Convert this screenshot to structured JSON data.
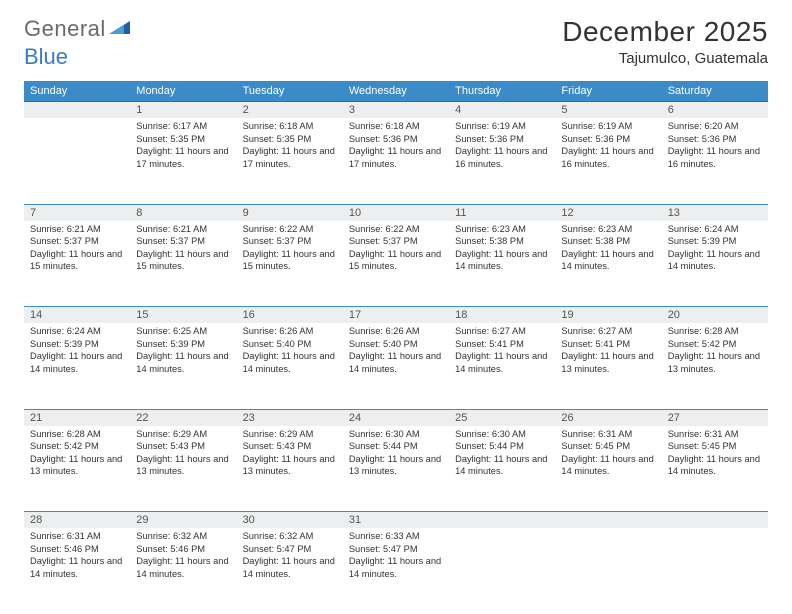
{
  "logo": {
    "general": "General",
    "blue": "Blue"
  },
  "title": "December 2025",
  "location": "Tajumulco, Guatemala",
  "header_bg": "#3b8bc9",
  "days_header": [
    "Sunday",
    "Monday",
    "Tuesday",
    "Wednesday",
    "Thursday",
    "Friday",
    "Saturday"
  ],
  "weeks": [
    {
      "nums": [
        "",
        "1",
        "2",
        "3",
        "4",
        "5",
        "6"
      ],
      "cells": [
        {
          "sunrise": "",
          "sunset": "",
          "daylight": ""
        },
        {
          "sunrise": "Sunrise: 6:17 AM",
          "sunset": "Sunset: 5:35 PM",
          "daylight": "Daylight: 11 hours and 17 minutes."
        },
        {
          "sunrise": "Sunrise: 6:18 AM",
          "sunset": "Sunset: 5:35 PM",
          "daylight": "Daylight: 11 hours and 17 minutes."
        },
        {
          "sunrise": "Sunrise: 6:18 AM",
          "sunset": "Sunset: 5:36 PM",
          "daylight": "Daylight: 11 hours and 17 minutes."
        },
        {
          "sunrise": "Sunrise: 6:19 AM",
          "sunset": "Sunset: 5:36 PM",
          "daylight": "Daylight: 11 hours and 16 minutes."
        },
        {
          "sunrise": "Sunrise: 6:19 AM",
          "sunset": "Sunset: 5:36 PM",
          "daylight": "Daylight: 11 hours and 16 minutes."
        },
        {
          "sunrise": "Sunrise: 6:20 AM",
          "sunset": "Sunset: 5:36 PM",
          "daylight": "Daylight: 11 hours and 16 minutes."
        }
      ]
    },
    {
      "nums": [
        "7",
        "8",
        "9",
        "10",
        "11",
        "12",
        "13"
      ],
      "cells": [
        {
          "sunrise": "Sunrise: 6:21 AM",
          "sunset": "Sunset: 5:37 PM",
          "daylight": "Daylight: 11 hours and 15 minutes."
        },
        {
          "sunrise": "Sunrise: 6:21 AM",
          "sunset": "Sunset: 5:37 PM",
          "daylight": "Daylight: 11 hours and 15 minutes."
        },
        {
          "sunrise": "Sunrise: 6:22 AM",
          "sunset": "Sunset: 5:37 PM",
          "daylight": "Daylight: 11 hours and 15 minutes."
        },
        {
          "sunrise": "Sunrise: 6:22 AM",
          "sunset": "Sunset: 5:37 PM",
          "daylight": "Daylight: 11 hours and 15 minutes."
        },
        {
          "sunrise": "Sunrise: 6:23 AM",
          "sunset": "Sunset: 5:38 PM",
          "daylight": "Daylight: 11 hours and 14 minutes."
        },
        {
          "sunrise": "Sunrise: 6:23 AM",
          "sunset": "Sunset: 5:38 PM",
          "daylight": "Daylight: 11 hours and 14 minutes."
        },
        {
          "sunrise": "Sunrise: 6:24 AM",
          "sunset": "Sunset: 5:39 PM",
          "daylight": "Daylight: 11 hours and 14 minutes."
        }
      ]
    },
    {
      "nums": [
        "14",
        "15",
        "16",
        "17",
        "18",
        "19",
        "20"
      ],
      "cells": [
        {
          "sunrise": "Sunrise: 6:24 AM",
          "sunset": "Sunset: 5:39 PM",
          "daylight": "Daylight: 11 hours and 14 minutes."
        },
        {
          "sunrise": "Sunrise: 6:25 AM",
          "sunset": "Sunset: 5:39 PM",
          "daylight": "Daylight: 11 hours and 14 minutes."
        },
        {
          "sunrise": "Sunrise: 6:26 AM",
          "sunset": "Sunset: 5:40 PM",
          "daylight": "Daylight: 11 hours and 14 minutes."
        },
        {
          "sunrise": "Sunrise: 6:26 AM",
          "sunset": "Sunset: 5:40 PM",
          "daylight": "Daylight: 11 hours and 14 minutes."
        },
        {
          "sunrise": "Sunrise: 6:27 AM",
          "sunset": "Sunset: 5:41 PM",
          "daylight": "Daylight: 11 hours and 14 minutes."
        },
        {
          "sunrise": "Sunrise: 6:27 AM",
          "sunset": "Sunset: 5:41 PM",
          "daylight": "Daylight: 11 hours and 13 minutes."
        },
        {
          "sunrise": "Sunrise: 6:28 AM",
          "sunset": "Sunset: 5:42 PM",
          "daylight": "Daylight: 11 hours and 13 minutes."
        }
      ]
    },
    {
      "nums": [
        "21",
        "22",
        "23",
        "24",
        "25",
        "26",
        "27"
      ],
      "cells": [
        {
          "sunrise": "Sunrise: 6:28 AM",
          "sunset": "Sunset: 5:42 PM",
          "daylight": "Daylight: 11 hours and 13 minutes."
        },
        {
          "sunrise": "Sunrise: 6:29 AM",
          "sunset": "Sunset: 5:43 PM",
          "daylight": "Daylight: 11 hours and 13 minutes."
        },
        {
          "sunrise": "Sunrise: 6:29 AM",
          "sunset": "Sunset: 5:43 PM",
          "daylight": "Daylight: 11 hours and 13 minutes."
        },
        {
          "sunrise": "Sunrise: 6:30 AM",
          "sunset": "Sunset: 5:44 PM",
          "daylight": "Daylight: 11 hours and 13 minutes."
        },
        {
          "sunrise": "Sunrise: 6:30 AM",
          "sunset": "Sunset: 5:44 PM",
          "daylight": "Daylight: 11 hours and 14 minutes."
        },
        {
          "sunrise": "Sunrise: 6:31 AM",
          "sunset": "Sunset: 5:45 PM",
          "daylight": "Daylight: 11 hours and 14 minutes."
        },
        {
          "sunrise": "Sunrise: 6:31 AM",
          "sunset": "Sunset: 5:45 PM",
          "daylight": "Daylight: 11 hours and 14 minutes."
        }
      ]
    },
    {
      "nums": [
        "28",
        "29",
        "30",
        "31",
        "",
        "",
        ""
      ],
      "cells": [
        {
          "sunrise": "Sunrise: 6:31 AM",
          "sunset": "Sunset: 5:46 PM",
          "daylight": "Daylight: 11 hours and 14 minutes."
        },
        {
          "sunrise": "Sunrise: 6:32 AM",
          "sunset": "Sunset: 5:46 PM",
          "daylight": "Daylight: 11 hours and 14 minutes."
        },
        {
          "sunrise": "Sunrise: 6:32 AM",
          "sunset": "Sunset: 5:47 PM",
          "daylight": "Daylight: 11 hours and 14 minutes."
        },
        {
          "sunrise": "Sunrise: 6:33 AM",
          "sunset": "Sunset: 5:47 PM",
          "daylight": "Daylight: 11 hours and 14 minutes."
        },
        {
          "sunrise": "",
          "sunset": "",
          "daylight": ""
        },
        {
          "sunrise": "",
          "sunset": "",
          "daylight": ""
        },
        {
          "sunrise": "",
          "sunset": "",
          "daylight": ""
        }
      ]
    }
  ]
}
